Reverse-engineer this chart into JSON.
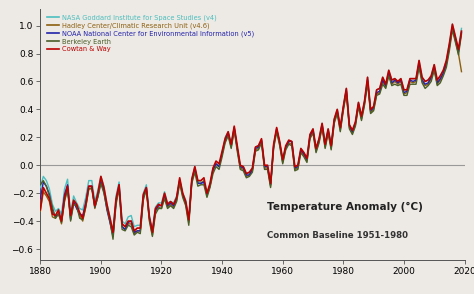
{
  "title": "Temperature Anomaly (°C)",
  "subtitle": "Common Baseline 1951-1980",
  "xlim": [
    1880,
    2020
  ],
  "ylim": [
    -0.68,
    1.12
  ],
  "yticks": [
    -0.6,
    -0.4,
    -0.2,
    0.0,
    0.2,
    0.4,
    0.6,
    0.8,
    1.0
  ],
  "xticks": [
    1880,
    1900,
    1920,
    1940,
    1960,
    1980,
    2000,
    2020
  ],
  "background_color": "#ede9e4",
  "legend_labels": [
    "NASA Goddard Institute for Space Studies (v4)",
    "Hadley Center/Climatic Research Unit (v4.6)",
    "NOAA National Center for Environmental Information (v5)",
    "Berkeley Earth",
    "Cowtan & Way"
  ],
  "legend_colors": [
    "#4bbfbf",
    "#8B6010",
    "#2222aa",
    "#4a5e28",
    "#bb0000"
  ],
  "line_widths": [
    1.0,
    1.0,
    1.0,
    1.0,
    1.2
  ],
  "years": [
    1880,
    1881,
    1882,
    1883,
    1884,
    1885,
    1886,
    1887,
    1888,
    1889,
    1890,
    1891,
    1892,
    1893,
    1894,
    1895,
    1896,
    1897,
    1898,
    1899,
    1900,
    1901,
    1902,
    1903,
    1904,
    1905,
    1906,
    1907,
    1908,
    1909,
    1910,
    1911,
    1912,
    1913,
    1914,
    1915,
    1916,
    1917,
    1918,
    1919,
    1920,
    1921,
    1922,
    1923,
    1924,
    1925,
    1926,
    1927,
    1928,
    1929,
    1930,
    1931,
    1932,
    1933,
    1934,
    1935,
    1936,
    1937,
    1938,
    1939,
    1940,
    1941,
    1942,
    1943,
    1944,
    1945,
    1946,
    1947,
    1948,
    1949,
    1950,
    1951,
    1952,
    1953,
    1954,
    1955,
    1956,
    1957,
    1958,
    1959,
    1960,
    1961,
    1962,
    1963,
    1964,
    1965,
    1966,
    1967,
    1968,
    1969,
    1970,
    1971,
    1972,
    1973,
    1974,
    1975,
    1976,
    1977,
    1978,
    1979,
    1980,
    1981,
    1982,
    1983,
    1984,
    1985,
    1986,
    1987,
    1988,
    1989,
    1990,
    1991,
    1992,
    1993,
    1994,
    1995,
    1996,
    1997,
    1998,
    1999,
    2000,
    2001,
    2002,
    2003,
    2004,
    2005,
    2006,
    2007,
    2008,
    2009,
    2010,
    2011,
    2012,
    2013,
    2014,
    2015,
    2016,
    2017,
    2018,
    2019
  ],
  "nasa_data": [
    -0.16,
    -0.08,
    -0.11,
    -0.17,
    -0.28,
    -0.33,
    -0.31,
    -0.35,
    -0.17,
    -0.1,
    -0.35,
    -0.22,
    -0.27,
    -0.31,
    -0.32,
    -0.23,
    -0.11,
    -0.11,
    -0.26,
    -0.18,
    -0.08,
    -0.15,
    -0.28,
    -0.37,
    -0.47,
    -0.22,
    -0.12,
    -0.4,
    -0.42,
    -0.37,
    -0.36,
    -0.44,
    -0.43,
    -0.43,
    -0.2,
    -0.14,
    -0.36,
    -0.46,
    -0.3,
    -0.27,
    -0.27,
    -0.19,
    -0.27,
    -0.26,
    -0.27,
    -0.22,
    -0.1,
    -0.2,
    -0.25,
    -0.38,
    -0.1,
    -0.01,
    -0.12,
    -0.12,
    -0.13,
    -0.2,
    -0.14,
    -0.02,
    -0.0,
    -0.01,
    0.09,
    0.2,
    0.24,
    0.14,
    0.27,
    0.12,
    -0.01,
    -0.01,
    -0.06,
    -0.06,
    -0.02,
    0.13,
    0.14,
    0.18,
    -0.01,
    -0.01,
    -0.14,
    0.14,
    0.26,
    0.16,
    0.03,
    0.13,
    0.17,
    0.17,
    -0.01,
    -0.01,
    0.12,
    0.09,
    0.05,
    0.22,
    0.26,
    0.12,
    0.19,
    0.3,
    0.16,
    0.26,
    0.14,
    0.33,
    0.4,
    0.27,
    0.42,
    0.55,
    0.29,
    0.25,
    0.31,
    0.45,
    0.35,
    0.46,
    0.63,
    0.4,
    0.42,
    0.54,
    0.55,
    0.63,
    0.58,
    0.68,
    0.61,
    0.62,
    0.6,
    0.62,
    0.54,
    0.54,
    0.62,
    0.62,
    0.62,
    0.75,
    0.63,
    0.6,
    0.61,
    0.64,
    0.72,
    0.61,
    0.64,
    0.68,
    0.75,
    0.87,
    1.01,
    0.92,
    0.83,
    0.98
  ],
  "hadley_data": [
    -0.33,
    -0.19,
    -0.22,
    -0.26,
    -0.37,
    -0.38,
    -0.34,
    -0.42,
    -0.25,
    -0.17,
    -0.38,
    -0.27,
    -0.3,
    -0.36,
    -0.4,
    -0.3,
    -0.17,
    -0.17,
    -0.31,
    -0.22,
    -0.1,
    -0.18,
    -0.3,
    -0.4,
    -0.5,
    -0.26,
    -0.16,
    -0.44,
    -0.46,
    -0.42,
    -0.42,
    -0.49,
    -0.47,
    -0.47,
    -0.23,
    -0.18,
    -0.39,
    -0.5,
    -0.33,
    -0.3,
    -0.31,
    -0.22,
    -0.3,
    -0.28,
    -0.3,
    -0.25,
    -0.11,
    -0.22,
    -0.28,
    -0.41,
    -0.12,
    -0.03,
    -0.13,
    -0.13,
    -0.11,
    -0.22,
    -0.15,
    -0.04,
    0.01,
    -0.01,
    0.08,
    0.17,
    0.22,
    0.13,
    0.26,
    0.12,
    -0.02,
    -0.03,
    -0.08,
    -0.07,
    -0.04,
    0.11,
    0.12,
    0.17,
    -0.02,
    -0.02,
    -0.15,
    0.13,
    0.25,
    0.15,
    0.02,
    0.12,
    0.16,
    0.15,
    -0.03,
    -0.02,
    0.1,
    0.07,
    0.03,
    0.2,
    0.24,
    0.1,
    0.17,
    0.28,
    0.13,
    0.24,
    0.12,
    0.31,
    0.38,
    0.25,
    0.4,
    0.53,
    0.27,
    0.23,
    0.29,
    0.43,
    0.33,
    0.44,
    0.6,
    0.38,
    0.4,
    0.51,
    0.52,
    0.6,
    0.56,
    0.65,
    0.58,
    0.6,
    0.58,
    0.6,
    0.51,
    0.52,
    0.6,
    0.59,
    0.6,
    0.72,
    0.6,
    0.57,
    0.58,
    0.62,
    0.69,
    0.58,
    0.61,
    0.65,
    0.72,
    0.84,
    0.98,
    0.89,
    0.8,
    0.67
  ],
  "noaa_data": [
    -0.24,
    -0.12,
    -0.15,
    -0.21,
    -0.32,
    -0.37,
    -0.35,
    -0.39,
    -0.21,
    -0.14,
    -0.39,
    -0.26,
    -0.31,
    -0.35,
    -0.36,
    -0.27,
    -0.15,
    -0.15,
    -0.3,
    -0.22,
    -0.12,
    -0.19,
    -0.32,
    -0.41,
    -0.51,
    -0.26,
    -0.14,
    -0.44,
    -0.46,
    -0.41,
    -0.4,
    -0.48,
    -0.47,
    -0.47,
    -0.22,
    -0.16,
    -0.38,
    -0.48,
    -0.32,
    -0.29,
    -0.29,
    -0.21,
    -0.29,
    -0.27,
    -0.29,
    -0.24,
    -0.11,
    -0.21,
    -0.27,
    -0.4,
    -0.11,
    -0.02,
    -0.13,
    -0.13,
    -0.12,
    -0.21,
    -0.15,
    -0.03,
    0.01,
    -0.01,
    0.08,
    0.18,
    0.23,
    0.14,
    0.27,
    0.12,
    -0.01,
    -0.02,
    -0.07,
    -0.07,
    -0.03,
    0.12,
    0.13,
    0.18,
    -0.01,
    -0.01,
    -0.14,
    0.14,
    0.26,
    0.16,
    0.03,
    0.13,
    0.17,
    0.17,
    -0.02,
    -0.01,
    0.11,
    0.08,
    0.04,
    0.21,
    0.25,
    0.11,
    0.18,
    0.29,
    0.14,
    0.25,
    0.13,
    0.32,
    0.39,
    0.26,
    0.41,
    0.54,
    0.28,
    0.24,
    0.3,
    0.44,
    0.34,
    0.45,
    0.61,
    0.39,
    0.41,
    0.52,
    0.53,
    0.61,
    0.57,
    0.66,
    0.59,
    0.61,
    0.59,
    0.61,
    0.52,
    0.53,
    0.61,
    0.6,
    0.61,
    0.73,
    0.61,
    0.58,
    0.59,
    0.63,
    0.7,
    0.59,
    0.62,
    0.66,
    0.73,
    0.85,
    0.99,
    0.9,
    0.81,
    0.95
  ],
  "berkeley_data": [
    -0.14,
    -0.11,
    -0.15,
    -0.22,
    -0.3,
    -0.38,
    -0.35,
    -0.41,
    -0.26,
    -0.17,
    -0.4,
    -0.28,
    -0.29,
    -0.38,
    -0.39,
    -0.3,
    -0.17,
    -0.16,
    -0.3,
    -0.23,
    -0.13,
    -0.2,
    -0.31,
    -0.4,
    -0.53,
    -0.28,
    -0.17,
    -0.46,
    -0.47,
    -0.43,
    -0.44,
    -0.5,
    -0.48,
    -0.49,
    -0.25,
    -0.17,
    -0.4,
    -0.51,
    -0.35,
    -0.31,
    -0.31,
    -0.24,
    -0.31,
    -0.29,
    -0.31,
    -0.26,
    -0.13,
    -0.23,
    -0.29,
    -0.43,
    -0.13,
    -0.05,
    -0.15,
    -0.14,
    -0.14,
    -0.23,
    -0.16,
    -0.06,
    -0.01,
    -0.03,
    0.06,
    0.16,
    0.21,
    0.12,
    0.25,
    0.1,
    -0.03,
    -0.04,
    -0.09,
    -0.08,
    -0.05,
    0.1,
    0.11,
    0.16,
    -0.03,
    -0.03,
    -0.16,
    0.12,
    0.24,
    0.14,
    0.01,
    0.11,
    0.15,
    0.14,
    -0.04,
    -0.03,
    0.09,
    0.06,
    0.02,
    0.19,
    0.23,
    0.09,
    0.16,
    0.27,
    0.12,
    0.23,
    0.11,
    0.3,
    0.37,
    0.24,
    0.39,
    0.52,
    0.26,
    0.22,
    0.28,
    0.42,
    0.32,
    0.43,
    0.59,
    0.37,
    0.39,
    0.5,
    0.51,
    0.58,
    0.55,
    0.64,
    0.57,
    0.58,
    0.57,
    0.58,
    0.5,
    0.5,
    0.58,
    0.58,
    0.58,
    0.7,
    0.59,
    0.55,
    0.57,
    0.6,
    0.68,
    0.57,
    0.59,
    0.64,
    0.7,
    0.82,
    0.97,
    0.88,
    0.79,
    0.94
  ],
  "cowtan_data": [
    -0.32,
    -0.16,
    -0.2,
    -0.24,
    -0.35,
    -0.36,
    -0.32,
    -0.4,
    -0.23,
    -0.15,
    -0.36,
    -0.25,
    -0.28,
    -0.34,
    -0.38,
    -0.28,
    -0.15,
    -0.15,
    -0.29,
    -0.2,
    -0.08,
    -0.16,
    -0.28,
    -0.38,
    -0.48,
    -0.24,
    -0.14,
    -0.42,
    -0.44,
    -0.4,
    -0.4,
    -0.47,
    -0.45,
    -0.45,
    -0.21,
    -0.16,
    -0.37,
    -0.48,
    -0.31,
    -0.28,
    -0.29,
    -0.2,
    -0.28,
    -0.26,
    -0.28,
    -0.23,
    -0.09,
    -0.2,
    -0.26,
    -0.39,
    -0.1,
    -0.01,
    -0.11,
    -0.11,
    -0.09,
    -0.2,
    -0.13,
    -0.02,
    0.03,
    0.01,
    0.1,
    0.19,
    0.24,
    0.15,
    0.28,
    0.14,
    0.0,
    -0.01,
    -0.06,
    -0.05,
    -0.02,
    0.13,
    0.14,
    0.19,
    0.0,
    0.0,
    -0.13,
    0.15,
    0.27,
    0.17,
    0.04,
    0.14,
    0.18,
    0.17,
    -0.01,
    0.0,
    0.12,
    0.09,
    0.05,
    0.22,
    0.26,
    0.12,
    0.19,
    0.3,
    0.15,
    0.26,
    0.14,
    0.33,
    0.4,
    0.27,
    0.42,
    0.55,
    0.29,
    0.25,
    0.31,
    0.45,
    0.35,
    0.46,
    0.63,
    0.4,
    0.42,
    0.54,
    0.55,
    0.63,
    0.58,
    0.68,
    0.61,
    0.62,
    0.6,
    0.62,
    0.54,
    0.54,
    0.62,
    0.62,
    0.62,
    0.75,
    0.63,
    0.6,
    0.61,
    0.64,
    0.72,
    0.61,
    0.64,
    0.68,
    0.75,
    0.87,
    1.01,
    0.92,
    0.83,
    0.96
  ]
}
